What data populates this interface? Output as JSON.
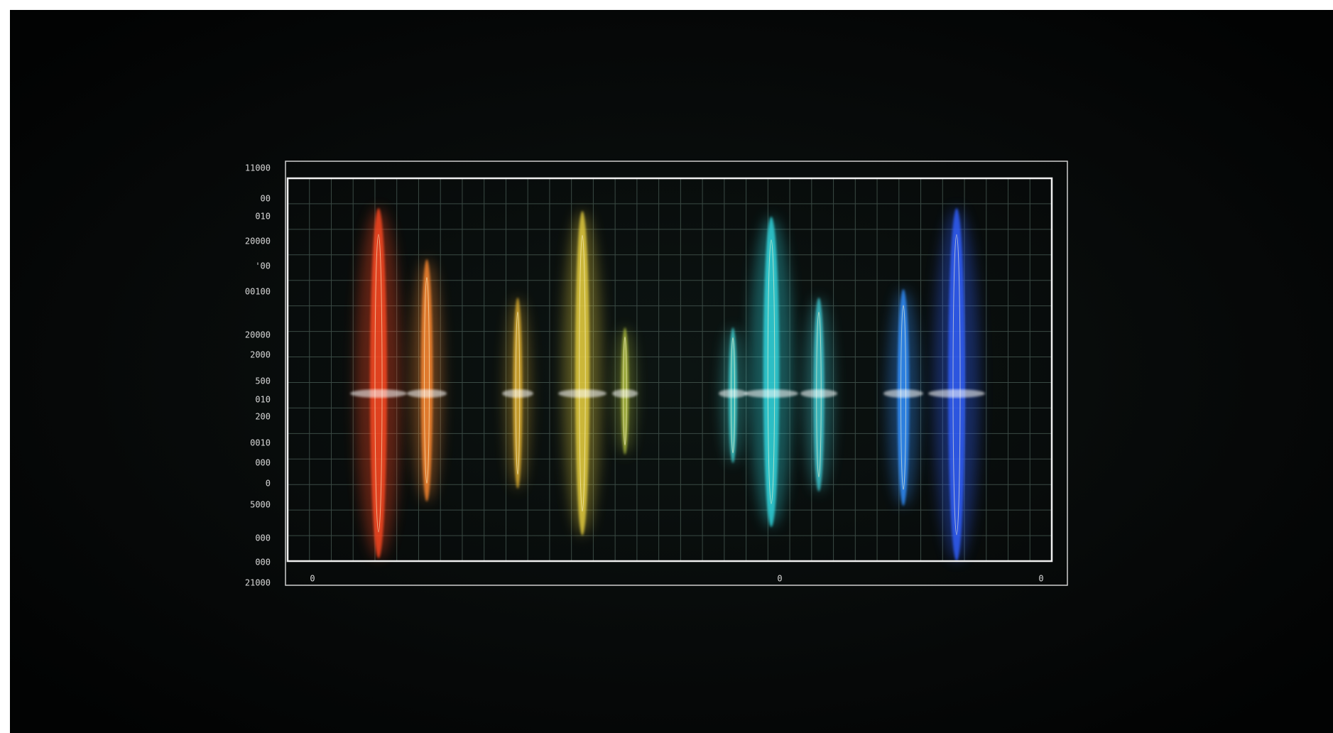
{
  "y_axis_labels": [
    "11000",
    "00",
    "010",
    "20000",
    "'00",
    "00100",
    "20000",
    "2000",
    "500",
    "010",
    "200",
    "0010",
    "000",
    "0",
    "5000",
    "000",
    "000",
    "21000"
  ],
  "x_axis_labels": [
    "0",
    "0",
    "0"
  ]
}
